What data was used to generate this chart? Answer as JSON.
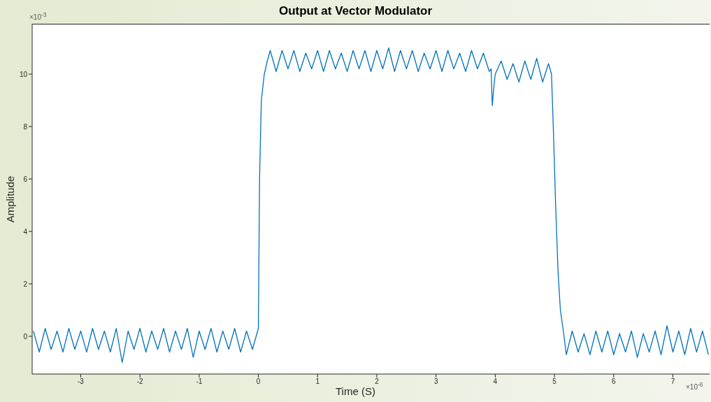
{
  "chart_data": {
    "type": "line",
    "title": "Output at Vector Modulator",
    "xlabel": "Time (S)",
    "ylabel": "Amplitude",
    "annotations": [
      "×10$^{-3}$",
      "×10$^{-6}$"
    ],
    "xlim": [
      -3.82,
      7.62
    ],
    "xticks": [
      -3,
      -2,
      -1,
      0,
      1,
      2,
      3,
      4,
      5,
      6,
      7
    ],
    "ylim": [
      -1.44,
      11.92
    ],
    "yticks": [
      0,
      2,
      4,
      6,
      8,
      10
    ],
    "marker": "none",
    "line_style": "solid",
    "series": [
      {
        "color": "#0072bd",
        "x": [
          -3.8,
          -3.7,
          -3.6,
          -3.5,
          -3.4,
          -3.3,
          -3.2,
          -3.1,
          -3.0,
          -2.9,
          -2.8,
          -2.7,
          -2.6,
          -2.5,
          -2.4,
          -2.3,
          -2.2,
          -2.1,
          -2.0,
          -1.9,
          -1.8,
          -1.7,
          -1.6,
          -1.5,
          -1.4,
          -1.3,
          -1.2,
          -1.1,
          -1.0,
          -0.9,
          -0.8,
          -0.7,
          -0.6,
          -0.5,
          -0.4,
          -0.3,
          -0.2,
          -0.1,
          0.0,
          0.02,
          0.05,
          0.1,
          0.15,
          0.2,
          0.3,
          0.4,
          0.5,
          0.6,
          0.7,
          0.8,
          0.9,
          1.0,
          1.1,
          1.2,
          1.3,
          1.4,
          1.5,
          1.6,
          1.7,
          1.8,
          1.9,
          2.0,
          2.1,
          2.2,
          2.3,
          2.4,
          2.5,
          2.6,
          2.7,
          2.8,
          2.9,
          3.0,
          3.1,
          3.2,
          3.3,
          3.4,
          3.5,
          3.6,
          3.7,
          3.8,
          3.9,
          3.93,
          3.95,
          3.98,
          4.0,
          4.1,
          4.2,
          4.3,
          4.4,
          4.5,
          4.6,
          4.7,
          4.8,
          4.9,
          4.95,
          4.98,
          5.02,
          5.06,
          5.1,
          5.15,
          5.2,
          5.3,
          5.4,
          5.5,
          5.6,
          5.7,
          5.8,
          5.9,
          6.0,
          6.1,
          6.2,
          6.3,
          6.4,
          6.5,
          6.6,
          6.7,
          6.8,
          6.9,
          7.0,
          7.1,
          7.2,
          7.3,
          7.4,
          7.5,
          7.6
        ],
        "values": [
          0.2,
          -0.6,
          0.3,
          -0.5,
          0.2,
          -0.6,
          0.3,
          -0.5,
          0.2,
          -0.6,
          0.3,
          -0.5,
          0.2,
          -0.6,
          0.3,
          -1.0,
          0.2,
          -0.5,
          0.3,
          -0.6,
          0.2,
          -0.5,
          0.3,
          -0.6,
          0.2,
          -0.5,
          0.3,
          -0.8,
          0.2,
          -0.5,
          0.3,
          -0.6,
          0.2,
          -0.5,
          0.3,
          -0.6,
          0.2,
          -0.5,
          0.3,
          6.0,
          9.0,
          10.0,
          10.5,
          10.9,
          10.1,
          10.9,
          10.2,
          10.9,
          10.1,
          10.8,
          10.2,
          10.9,
          10.1,
          10.9,
          10.2,
          10.8,
          10.1,
          10.9,
          10.2,
          10.9,
          10.1,
          10.9,
          10.2,
          11.0,
          10.1,
          10.9,
          10.2,
          10.9,
          10.1,
          10.8,
          10.2,
          10.9,
          10.1,
          10.9,
          10.2,
          10.8,
          10.1,
          10.9,
          10.2,
          10.8,
          10.1,
          10.2,
          8.8,
          9.6,
          10.0,
          10.5,
          9.8,
          10.4,
          9.7,
          10.5,
          9.8,
          10.6,
          9.7,
          10.4,
          10.0,
          8.0,
          5.0,
          2.5,
          1.0,
          0.2,
          -0.7,
          0.2,
          -0.6,
          0.1,
          -0.7,
          0.2,
          -0.6,
          0.2,
          -0.7,
          0.1,
          -0.6,
          0.2,
          -0.8,
          0.1,
          -0.6,
          0.2,
          -0.7,
          0.4,
          -0.6,
          0.2,
          -0.7,
          0.3,
          -0.6,
          0.2,
          -0.7
        ]
      }
    ]
  }
}
